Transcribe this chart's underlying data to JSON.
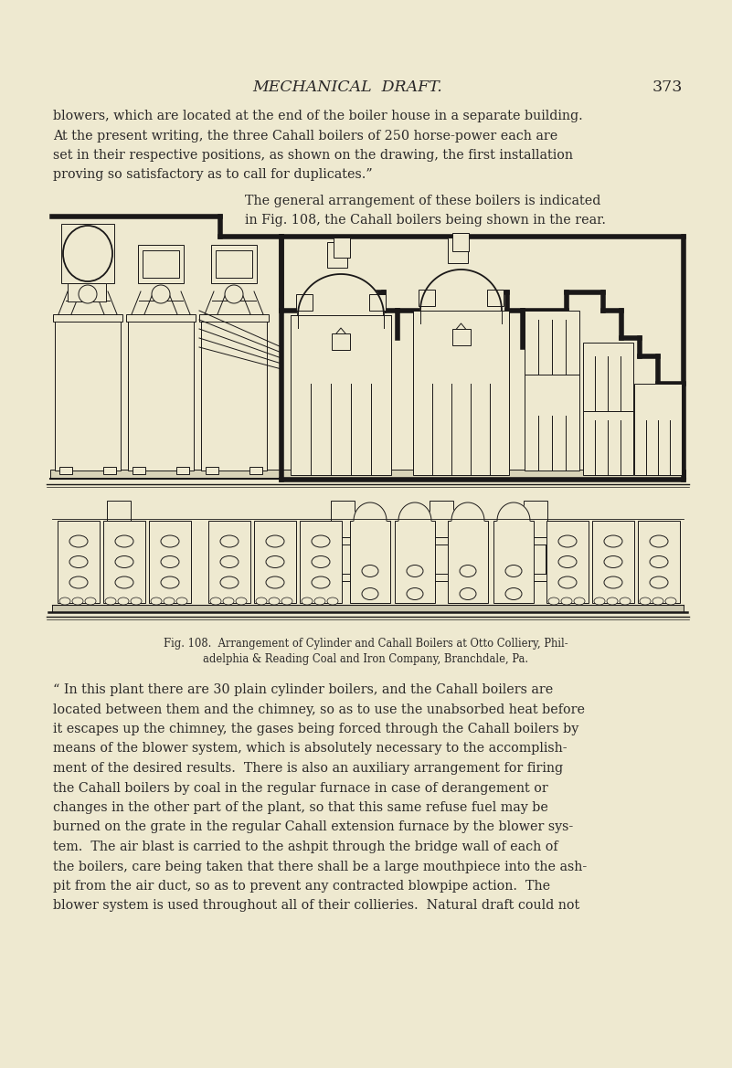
{
  "bg_color": "#eee9d0",
  "text_color": "#2a2828",
  "draw_color": "#1a1818",
  "header": "MECHANICAL  DRAFT.",
  "page_num": "373",
  "para1": [
    "blowers, which are located at the end of the boiler house in a separate building.",
    "At the present writing, the three Cahall boilers of 250 horse-power each are",
    "set in their respective positions, as shown on the drawing, the first installation",
    "proving so satisfactory as to call for duplicates.”"
  ],
  "inline": [
    "The general arrangement of these boilers is indicated",
    "in Fig. 108, the Cahall boilers being shown in the rear."
  ],
  "cap1": "Fig. 108.  Arrangement of Cylinder and Cahall Boilers at Otto Colliery, Phil-",
  "cap2": "adelphia & Reading Coal and Iron Company, Branchdale, Pa.",
  "para2": [
    "“ In this plant there are 30 plain cylinder boilers, and the Cahall boilers are",
    "located between them and the chimney, so as to use the unabsorbed heat before",
    "it escapes up the chimney, the gases being forced through the Cahall boilers by",
    "means of the blower system, which is absolutely necessary to the accomplish-",
    "ment of the desired results.  There is also an auxiliary arrangement for firing",
    "the Cahall boilers by coal in the regular furnace in case of derangement or",
    "changes in the other part of the plant, so that this same refuse fuel may be",
    "burned on the grate in the regular Cahall extension furnace by the blower sys-",
    "tem.  The air blast is carried to the ashpit through the bridge wall of each of",
    "the boilers, care being taken that there shall be a large mouthpiece into the ash-",
    "pit from the air duct, so as to prevent any contracted blowpipe action.  The",
    "blower system is used throughout all of their collieries.  Natural draft could not"
  ]
}
